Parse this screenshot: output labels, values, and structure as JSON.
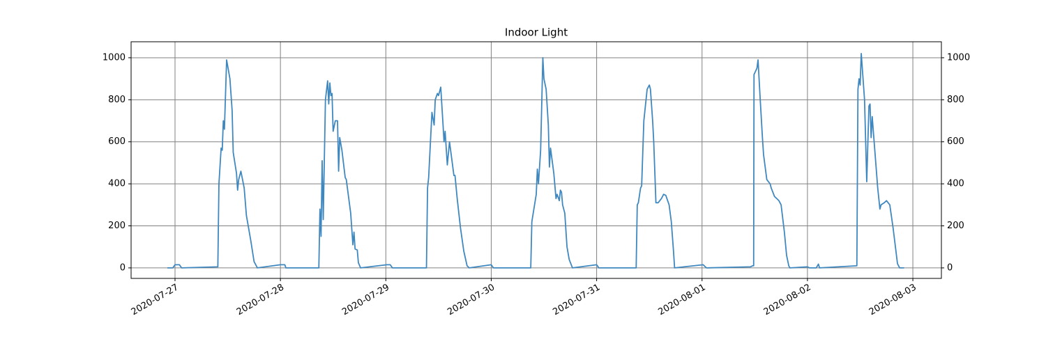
{
  "chart_data": {
    "type": "line",
    "title": "Indoor Light",
    "color": "#3f88bf",
    "grid": true,
    "x": [
      "2020-07-26T22:15",
      "2020-07-26T23:30",
      "2020-07-27T00:00",
      "2020-07-27T01:00",
      "2020-07-27T01:30",
      "2020-07-27T09:45",
      "2020-07-27T10:00",
      "2020-07-27T10:30",
      "2020-07-27T10:45",
      "2020-07-27T11:00",
      "2020-07-27T11:15",
      "2020-07-27T11:45",
      "2020-07-27T12:30",
      "2020-07-27T13:00",
      "2020-07-27T13:15",
      "2020-07-27T14:00",
      "2020-07-27T14:15",
      "2020-07-27T14:30",
      "2020-07-27T15:00",
      "2020-07-27T15:45",
      "2020-07-27T16:15",
      "2020-07-27T17:15",
      "2020-07-27T18:00",
      "2020-07-27T18:45",
      "2020-07-28T00:00",
      "2020-07-28T01:00",
      "2020-07-28T01:15",
      "2020-07-28T08:45",
      "2020-07-28T09:00",
      "2020-07-28T09:15",
      "2020-07-28T09:30",
      "2020-07-28T09:45",
      "2020-07-28T10:15",
      "2020-07-28T10:45",
      "2020-07-28T11:00",
      "2020-07-28T11:15",
      "2020-07-28T11:30",
      "2020-07-28T11:45",
      "2020-07-28T12:00",
      "2020-07-28T12:30",
      "2020-07-28T13:00",
      "2020-07-28T13:15",
      "2020-07-28T13:30",
      "2020-07-28T14:00",
      "2020-07-28T14:45",
      "2020-07-28T15:00",
      "2020-07-28T16:00",
      "2020-07-28T16:30",
      "2020-07-28T16:45",
      "2020-07-28T17:00",
      "2020-07-28T17:30",
      "2020-07-28T17:45",
      "2020-07-28T18:15",
      "2020-07-29T00:15",
      "2020-07-29T01:00",
      "2020-07-29T01:30",
      "2020-07-29T09:15",
      "2020-07-29T09:30",
      "2020-07-29T09:45",
      "2020-07-29T10:30",
      "2020-07-29T11:00",
      "2020-07-29T11:15",
      "2020-07-29T11:45",
      "2020-07-29T12:00",
      "2020-07-29T12:30",
      "2020-07-29T13:00",
      "2020-07-29T13:15",
      "2020-07-29T13:30",
      "2020-07-29T14:00",
      "2020-07-29T14:30",
      "2020-07-29T15:30",
      "2020-07-29T15:45",
      "2020-07-29T16:15",
      "2020-07-29T17:00",
      "2020-07-29T17:45",
      "2020-07-29T18:30",
      "2020-07-29T19:00",
      "2020-07-30T00:00",
      "2020-07-30T00:30",
      "2020-07-30T09:00",
      "2020-07-30T09:15",
      "2020-07-30T10:15",
      "2020-07-30T10:30",
      "2020-07-30T10:45",
      "2020-07-30T11:15",
      "2020-07-30T11:45",
      "2020-07-30T12:00",
      "2020-07-30T12:30",
      "2020-07-30T13:00",
      "2020-07-30T13:15",
      "2020-07-30T13:30",
      "2020-07-30T14:15",
      "2020-07-30T14:45",
      "2020-07-30T15:00",
      "2020-07-30T15:30",
      "2020-07-30T15:45",
      "2020-07-30T16:00",
      "2020-07-30T16:15",
      "2020-07-30T16:45",
      "2020-07-30T17:15",
      "2020-07-30T17:45",
      "2020-07-30T18:30",
      "2020-07-31T00:00",
      "2020-07-31T00:30",
      "2020-07-31T09:00",
      "2020-07-31T09:15",
      "2020-07-31T09:30",
      "2020-07-31T10:00",
      "2020-07-31T10:15",
      "2020-07-31T10:45",
      "2020-07-31T11:30",
      "2020-07-31T12:00",
      "2020-07-31T12:15",
      "2020-07-31T12:45",
      "2020-07-31T13:00",
      "2020-07-31T13:30",
      "2020-07-31T14:00",
      "2020-07-31T14:45",
      "2020-07-31T15:15",
      "2020-07-31T15:45",
      "2020-07-31T16:30",
      "2020-07-31T17:00",
      "2020-07-31T17:30",
      "2020-07-31T17:45",
      "2020-08-01T00:15",
      "2020-08-01T01:00",
      "2020-08-01T11:00",
      "2020-08-01T11:30",
      "2020-08-01T11:45",
      "2020-08-01T11:50",
      "2020-08-01T12:30",
      "2020-08-01T12:45",
      "2020-08-01T13:15",
      "2020-08-01T13:45",
      "2020-08-01T14:00",
      "2020-08-01T14:45",
      "2020-08-01T15:30",
      "2020-08-01T15:45",
      "2020-08-01T16:30",
      "2020-08-01T17:30",
      "2020-08-01T18:00",
      "2020-08-01T18:45",
      "2020-08-01T19:15",
      "2020-08-01T19:45",
      "2020-08-01T20:00",
      "2020-08-02T00:00",
      "2020-08-02T00:30",
      "2020-08-02T02:00",
      "2020-08-02T02:30",
      "2020-08-02T02:45",
      "2020-08-02T11:15",
      "2020-08-02T11:30",
      "2020-08-02T11:45",
      "2020-08-02T12:00",
      "2020-08-02T12:15",
      "2020-08-02T13:00",
      "2020-08-02T13:30",
      "2020-08-02T14:00",
      "2020-08-02T14:15",
      "2020-08-02T14:30",
      "2020-08-02T14:45",
      "2020-08-02T15:00",
      "2020-08-02T16:00",
      "2020-08-02T16:30",
      "2020-08-02T16:45",
      "2020-08-02T17:30",
      "2020-08-02T18:00",
      "2020-08-02T18:45",
      "2020-08-02T19:30",
      "2020-08-02T20:30",
      "2020-08-02T21:00",
      "2020-08-02T22:00"
    ],
    "values": [
      0,
      0,
      15,
      15,
      0,
      5,
      400,
      570,
      560,
      700,
      660,
      990,
      900,
      750,
      550,
      450,
      370,
      420,
      460,
      380,
      250,
      130,
      30,
      0,
      15,
      15,
      0,
      0,
      280,
      150,
      510,
      230,
      800,
      890,
      780,
      880,
      820,
      830,
      650,
      700,
      700,
      460,
      620,
      560,
      430,
      420,
      260,
      110,
      170,
      90,
      85,
      25,
      0,
      15,
      15,
      0,
      0,
      380,
      430,
      740,
      680,
      800,
      830,
      820,
      860,
      690,
      600,
      650,
      490,
      600,
      440,
      440,
      330,
      190,
      80,
      10,
      0,
      15,
      0,
      0,
      220,
      350,
      470,
      400,
      560,
      1000,
      900,
      850,
      680,
      480,
      570,
      450,
      330,
      350,
      320,
      370,
      360,
      300,
      260,
      100,
      40,
      0,
      15,
      0,
      0,
      300,
      310,
      380,
      390,
      700,
      850,
      870,
      850,
      700,
      600,
      310,
      310,
      330,
      350,
      345,
      300,
      220,
      80,
      0,
      15,
      0,
      5,
      10,
      10,
      920,
      950,
      990,
      800,
      620,
      540,
      420,
      400,
      380,
      340,
      320,
      300,
      170,
      60,
      10,
      0,
      5,
      0,
      0,
      18,
      0,
      10,
      850,
      900,
      870,
      1020,
      800,
      410,
      770,
      780,
      620,
      720,
      650,
      380,
      280,
      300,
      310,
      320,
      300,
      190,
      20,
      0,
      0
    ],
    "xlim": [
      "2020-07-26T14:00",
      "2020-08-03T06:30"
    ],
    "xticks": [
      "2020-07-27",
      "2020-07-28",
      "2020-07-29",
      "2020-07-30",
      "2020-07-31",
      "2020-08-01",
      "2020-08-02",
      "2020-08-03"
    ],
    "ylim": [
      -50,
      1076
    ],
    "yticks": [
      0,
      200,
      400,
      600,
      800,
      1000
    ],
    "y2lim": [
      -50,
      1076
    ],
    "y2ticks": [
      0,
      200,
      400,
      600,
      800,
      1000
    ]
  }
}
